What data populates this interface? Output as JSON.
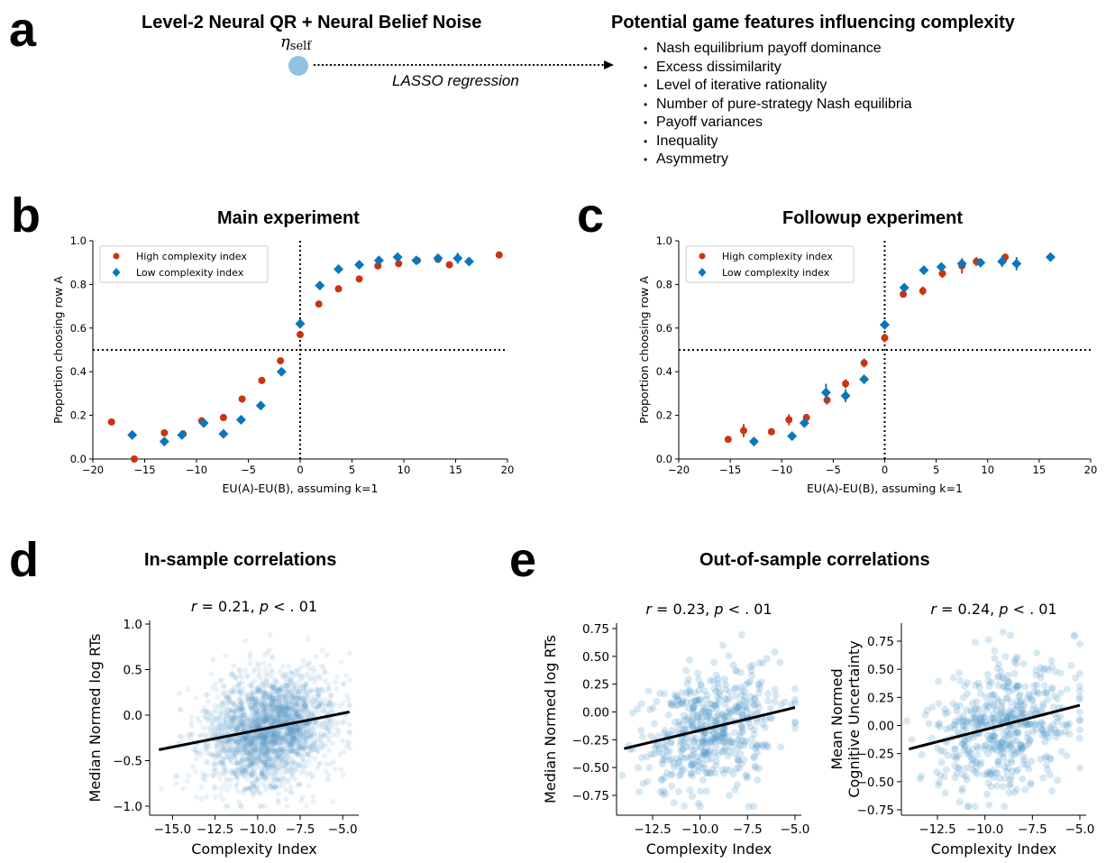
{
  "panels": {
    "a": {
      "letter": "a",
      "model_title": "Level-2 Neural QR + Neural Belief Noise",
      "parameter_symbol": "η",
      "parameter_subscript": "self",
      "node_color": "#91c1e3",
      "arrow_label": "LASSO regression",
      "features_title": "Potential game features influencing complexity",
      "features": [
        "Nash equilibrium payoff dominance",
        "Excess dissimilarity",
        "Level of iterative rationality",
        "Number of pure-strategy Nash equilibria",
        "Payoff variances",
        "Inequality",
        "Asymmetry"
      ]
    },
    "b": {
      "letter": "b",
      "title": "Main experiment"
    },
    "c": {
      "letter": "c",
      "title": "Followup experiment"
    },
    "d": {
      "letter": "d",
      "title": "In-sample correlations"
    },
    "e": {
      "letter": "e",
      "title": "Out-of-sample correlations"
    }
  },
  "colors": {
    "high": "#cc3311",
    "low": "#0a77bb",
    "scatter": "#4f94c8",
    "fit_line": "#000000"
  },
  "chart_data": [
    {
      "id": "b",
      "type": "scatter",
      "title": "Main experiment",
      "xlabel": "EU(A)-EU(B), assuming k=1",
      "ylabel": "Proportion choosing row A",
      "xlim": [
        -20,
        20
      ],
      "ylim": [
        0,
        1
      ],
      "xticks": [
        -20,
        -15,
        -10,
        -5,
        0,
        5,
        10,
        15,
        20
      ],
      "xtick_labels": [
        "−20",
        "−15",
        "−10",
        "−5",
        "0",
        "5",
        "10",
        "15",
        "20"
      ],
      "yticks": [
        0,
        0.2,
        0.4,
        0.6,
        0.8,
        1.0
      ],
      "ytick_labels": [
        "0.0",
        "0.2",
        "0.4",
        "0.6",
        "0.8",
        "1.0"
      ],
      "reference_lines": {
        "x": 0,
        "y": 0.5,
        "style": "dotted"
      },
      "legend_position": "upper-left",
      "series": [
        {
          "name": "High complexity index",
          "marker": "circle",
          "x": [
            -18.2,
            -16.0,
            -13.1,
            -11.3,
            -9.5,
            -7.4,
            -5.6,
            -3.7,
            -1.9,
            0.0,
            1.8,
            3.7,
            5.7,
            7.5,
            9.5,
            11.3,
            13.3,
            14.4,
            19.2
          ],
          "y": [
            0.17,
            0.0,
            0.12,
            0.115,
            0.175,
            0.19,
            0.275,
            0.36,
            0.45,
            0.57,
            0.71,
            0.78,
            0.825,
            0.885,
            0.895,
            0.91,
            0.915,
            0.89,
            0.935
          ],
          "yerr": [
            0.005,
            0.005,
            0.005,
            0.005,
            0.005,
            0.005,
            0.005,
            0.005,
            0.005,
            0.005,
            0.005,
            0.005,
            0.005,
            0.005,
            0.005,
            0.01,
            0.01,
            0.005,
            0.005
          ]
        },
        {
          "name": "Low complexity index",
          "marker": "diamond",
          "x": [
            -16.2,
            -13.1,
            -11.4,
            -9.3,
            -7.4,
            -5.7,
            -3.8,
            -1.8,
            0.0,
            1.9,
            3.7,
            5.7,
            7.6,
            9.4,
            11.2,
            13.3,
            15.2,
            16.3
          ],
          "y": [
            0.11,
            0.08,
            0.11,
            0.165,
            0.115,
            0.18,
            0.245,
            0.4,
            0.62,
            0.795,
            0.87,
            0.89,
            0.91,
            0.925,
            0.91,
            0.92,
            0.92,
            0.905
          ],
          "yerr": [
            0.005,
            0.005,
            0.005,
            0.005,
            0.005,
            0.005,
            0.005,
            0.005,
            0.005,
            0.005,
            0.005,
            0.005,
            0.005,
            0.005,
            0.005,
            0.01,
            0.025,
            0.005
          ]
        }
      ]
    },
    {
      "id": "c",
      "type": "scatter",
      "title": "Followup experiment",
      "xlabel": "EU(A)-EU(B), assuming k=1",
      "ylabel": "Proportion choosing row A",
      "xlim": [
        -20,
        20
      ],
      "ylim": [
        0,
        1
      ],
      "xticks": [
        -20,
        -15,
        -10,
        -5,
        0,
        5,
        10,
        15,
        20
      ],
      "xtick_labels": [
        "−20",
        "−15",
        "−10",
        "−5",
        "0",
        "5",
        "10",
        "15",
        "20"
      ],
      "yticks": [
        0,
        0.2,
        0.4,
        0.6,
        0.8,
        1.0
      ],
      "ytick_labels": [
        "0.0",
        "0.2",
        "0.4",
        "0.6",
        "0.8",
        "1.0"
      ],
      "reference_lines": {
        "x": 0,
        "y": 0.5,
        "style": "dotted"
      },
      "legend_position": "upper-left",
      "series": [
        {
          "name": "High complexity index",
          "marker": "circle",
          "x": [
            -15.2,
            -13.7,
            -11.0,
            -9.3,
            -7.6,
            -5.6,
            -3.8,
            -2.0,
            0.0,
            1.8,
            3.7,
            5.6,
            7.5,
            8.9,
            11.7
          ],
          "y": [
            0.09,
            0.13,
            0.125,
            0.18,
            0.19,
            0.27,
            0.345,
            0.44,
            0.555,
            0.755,
            0.77,
            0.85,
            0.885,
            0.905,
            0.925
          ],
          "yerr": [
            0.005,
            0.03,
            0.015,
            0.025,
            0.015,
            0.02,
            0.02,
            0.02,
            0.02,
            0.01,
            0.02,
            0.02,
            0.035,
            0.02,
            0.005
          ]
        },
        {
          "name": "Low complexity index",
          "marker": "diamond",
          "x": [
            -12.7,
            -9.0,
            -7.8,
            -5.7,
            -3.8,
            -2.0,
            0.0,
            1.9,
            3.8,
            5.5,
            7.5,
            9.3,
            11.4,
            12.8,
            16.1
          ],
          "y": [
            0.08,
            0.105,
            0.165,
            0.305,
            0.29,
            0.365,
            0.615,
            0.785,
            0.865,
            0.88,
            0.895,
            0.9,
            0.905,
            0.895,
            0.925
          ],
          "yerr": [
            0.005,
            0.005,
            0.02,
            0.04,
            0.03,
            0.02,
            0.02,
            0.01,
            0.005,
            0.005,
            0.01,
            0.01,
            0.025,
            0.03,
            0.005
          ]
        }
      ]
    },
    {
      "id": "d",
      "type": "scatter",
      "title": "r = 0.21, p < .01",
      "stat": {
        "r": "0.21",
        "p": ".01"
      },
      "xlabel": "Complexity Index",
      "ylabel": "Median Normed log RTs",
      "xlim": [
        -16.3,
        -4.3
      ],
      "ylim": [
        -1.07,
        1.0
      ],
      "xticks": [
        -15.0,
        -12.5,
        -10.0,
        -7.5,
        -5.0
      ],
      "xtick_labels": [
        "−15.0",
        "−12.5",
        "−10.0",
        "−7.5",
        "−5.0"
      ],
      "yticks": [
        -1.0,
        -0.5,
        0.0,
        0.5,
        1.0
      ],
      "ytick_labels": [
        "−1.0",
        "−0.5",
        "0.0",
        "0.5",
        "1.0"
      ],
      "fit_line": {
        "x": [
          -15.8,
          -4.6
        ],
        "y": [
          -0.38,
          0.035
        ]
      },
      "cloud": {
        "n_points": 2400,
        "x_mean": -9.3,
        "x_sd": 1.9,
        "y_mean": -0.16,
        "y_sd": 0.31,
        "x_range": [
          -16.0,
          -4.6
        ],
        "y_range": [
          -1.0,
          0.92
        ],
        "opacity": 0.12
      }
    },
    {
      "id": "e-rt",
      "type": "scatter",
      "title": "r = 0.23, p < .01",
      "stat": {
        "r": "0.23",
        "p": ".01"
      },
      "xlabel": "Complexity Index",
      "ylabel": "Median Normed log RTs",
      "xlim": [
        -14.3,
        -4.6
      ],
      "ylim": [
        -0.93,
        0.82
      ],
      "xticks": [
        -12.5,
        -10.0,
        -7.5,
        -5.0
      ],
      "xtick_labels": [
        "−12.5",
        "−10.0",
        "−7.5",
        "−5.0"
      ],
      "yticks": [
        -0.75,
        -0.5,
        -0.25,
        0.0,
        0.25,
        0.5,
        0.75
      ],
      "ytick_labels": [
        "−0.75",
        "−0.50",
        "−0.25",
        "0.00",
        "0.25",
        "0.50",
        "0.75"
      ],
      "fit_line": {
        "x": [
          -14.0,
          -5.0
        ],
        "y": [
          -0.33,
          0.04
        ]
      },
      "cloud": {
        "n_points": 520,
        "x_mean": -9.3,
        "x_sd": 1.8,
        "y_mean": -0.15,
        "y_sd": 0.27,
        "x_range": [
          -14.1,
          -5.0
        ],
        "y_range": [
          -0.85,
          0.73
        ],
        "opacity": 0.22
      }
    },
    {
      "id": "e-cu",
      "type": "scatter",
      "title": "r = 0.24, p < .01",
      "stat": {
        "r": "0.24",
        "p": ".01"
      },
      "xlabel": "Complexity Index",
      "ylabel_lines": [
        "Mean Normed",
        "Cognitive Uncertainty"
      ],
      "xlim": [
        -14.3,
        -4.6
      ],
      "ylim": [
        -0.78,
        0.93
      ],
      "xticks": [
        -12.5,
        -10.0,
        -7.5,
        -5.0
      ],
      "xtick_labels": [
        "−12.5",
        "−10.0",
        "−7.5",
        "−5.0"
      ],
      "yticks": [
        -0.75,
        -0.5,
        -0.25,
        0.0,
        0.25,
        0.5,
        0.75
      ],
      "ytick_labels": [
        "−0.75",
        "−0.50",
        "−0.25",
        "0.00",
        "0.25",
        "0.50",
        "0.75"
      ],
      "fit_line": {
        "x": [
          -14.0,
          -5.0
        ],
        "y": [
          -0.21,
          0.18
        ]
      },
      "cloud": {
        "n_points": 520,
        "x_mean": -9.1,
        "x_sd": 1.8,
        "y_mean": -0.02,
        "y_sd": 0.28,
        "x_range": [
          -14.1,
          -5.0
        ],
        "y_range": [
          -0.72,
          0.83
        ],
        "opacity": 0.22
      }
    }
  ]
}
